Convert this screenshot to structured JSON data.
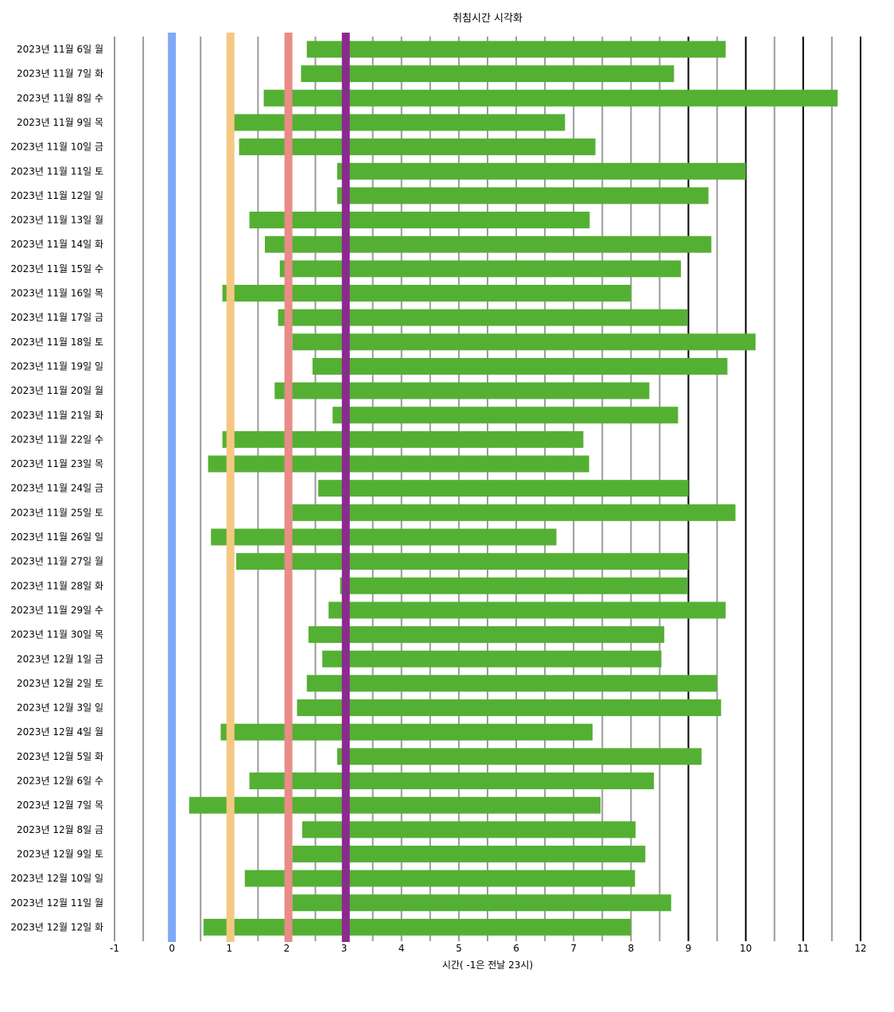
{
  "chart_data": {
    "type": "bar",
    "title": "취침시간 시각화",
    "xlabel": "시간( -1은 전날 23시)",
    "ylabel": "",
    "xlim": [
      -1,
      12
    ],
    "x_ticks": [
      "-1",
      "0",
      "1",
      "2",
      "3",
      "4",
      "5",
      "6",
      "7",
      "8",
      "9",
      "10",
      "11",
      "12"
    ],
    "grid": "vertical lines every 0.5 h; gray at .5 and hours 0–8, black at hours 9–12",
    "reference_lines": [
      {
        "x": 0,
        "color": "#7fa8f7"
      },
      {
        "x": 1.02,
        "color": "#f5c882"
      },
      {
        "x": 2.03,
        "color": "#e88c86"
      },
      {
        "x": 3.03,
        "color": "#8b2a8f"
      }
    ],
    "bar_color": "#54b033",
    "categories": [
      "2023년 11월 6일 월",
      "2023년 11월 7일 화",
      "2023년 11월 8일 수",
      "2023년 11월 9일 목",
      "2023년 11월 10일 금",
      "2023년 11월 11일 토",
      "2023년 11월 12일 일",
      "2023년 11월 13일 월",
      "2023년 11월 14일 화",
      "2023년 11월 15일 수",
      "2023년 11월 16일 목",
      "2023년 11월 17일 금",
      "2023년 11월 18일 토",
      "2023년 11월 19일 일",
      "2023년 11월 20일 월",
      "2023년 11월 21일 화",
      "2023년 11월 22일 수",
      "2023년 11월 23일 목",
      "2023년 11월 24일 금",
      "2023년 11월 25일 토",
      "2023년 11월 26일 일",
      "2023년 11월 27일 월",
      "2023년 11월 28일 화",
      "2023년 11월 29일 수",
      "2023년 11월 30일 목",
      "2023년 12월 1일 금",
      "2023년 12월 2일 토",
      "2023년 12월 3일 일",
      "2023년 12월 4일 월",
      "2023년 12월 5일 화",
      "2023년 12월 6일 수",
      "2023년 12월 7일 목",
      "2023년 12월 8일 금",
      "2023년 12월 9일 토",
      "2023년 12월 10일 일",
      "2023년 12월 11일 월",
      "2023년 12월 12일 화"
    ],
    "start": [
      2.35,
      2.25,
      1.6,
      1.05,
      1.17,
      2.88,
      2.88,
      1.35,
      1.62,
      1.88,
      0.88,
      1.85,
      2.1,
      2.45,
      1.79,
      2.8,
      0.88,
      0.63,
      2.55,
      2.1,
      0.68,
      1.12,
      2.93,
      2.73,
      2.38,
      2.62,
      2.35,
      2.18,
      0.85,
      2.88,
      1.35,
      0.3,
      2.27,
      2.1,
      1.27,
      2.1,
      0.55
    ],
    "end": [
      9.65,
      8.75,
      11.6,
      6.85,
      7.38,
      10.0,
      9.35,
      7.28,
      9.4,
      8.87,
      8.0,
      8.98,
      10.17,
      9.68,
      8.32,
      8.82,
      7.17,
      7.27,
      9.0,
      9.82,
      6.7,
      9.0,
      8.98,
      9.65,
      8.58,
      8.53,
      9.5,
      9.57,
      7.33,
      9.23,
      8.4,
      7.47,
      8.08,
      8.25,
      8.07,
      8.7,
      8.0
    ]
  }
}
